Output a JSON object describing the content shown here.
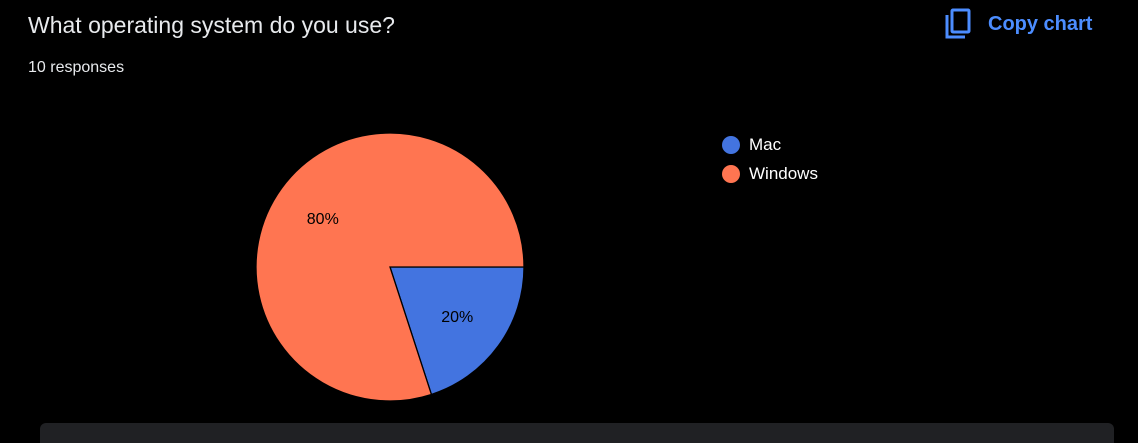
{
  "question": {
    "title": "What operating system do you use?",
    "responses": "10 responses"
  },
  "toolbar": {
    "copy_label": "Copy chart",
    "copy_icon": "copy-icon",
    "accent_color": "#4c8dff"
  },
  "chart_data": {
    "type": "pie",
    "categories": [
      "Mac",
      "Windows"
    ],
    "values": [
      20,
      80
    ],
    "labels": [
      "20%",
      "80%"
    ],
    "colors": [
      "#4374e0",
      "#ff7551"
    ],
    "legend": "right"
  }
}
